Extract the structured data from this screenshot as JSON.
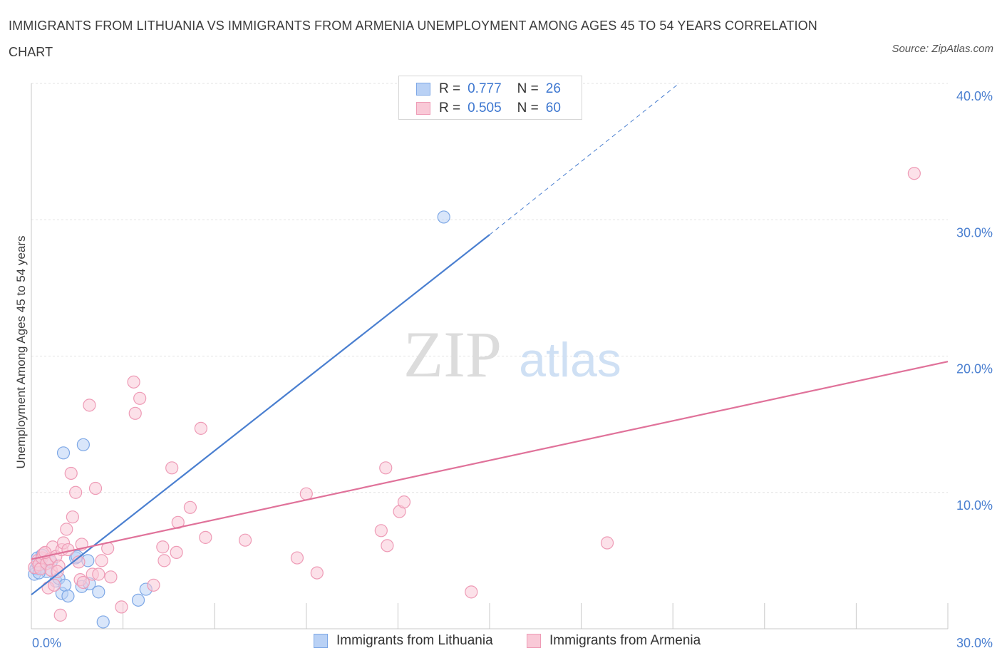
{
  "title": "IMMIGRANTS FROM LITHUANIA VS IMMIGRANTS FROM ARMENIA UNEMPLOYMENT AMONG AGES 45 TO 54 YEARS CORRELATION CHART",
  "source": "Source: ZipAtlas.com",
  "watermark": {
    "zip": "ZIP",
    "atlas": "atlas"
  },
  "stats": [
    {
      "r_label": "R =",
      "r_value": "0.777",
      "n_label": "N =",
      "n_value": "26",
      "color": "#4a7fd0"
    },
    {
      "r_label": "R =",
      "r_value": "0.505",
      "n_label": "N =",
      "n_value": "60",
      "color": "#e0729a"
    }
  ],
  "legend": [
    {
      "label": "Immigrants from Lithuania",
      "fill": "#b9d1f5",
      "stroke": "#7ea8e6"
    },
    {
      "label": "Immigrants from Armenia",
      "fill": "#f9c9d7",
      "stroke": "#ee9bb6"
    }
  ],
  "chart_data": {
    "type": "scatter",
    "title": "IMMIGRANTS FROM LITHUANIA VS IMMIGRANTS FROM ARMENIA UNEMPLOYMENT AMONG AGES 45 TO 54 YEARS CORRELATION CHART",
    "xlabel": "",
    "ylabel": "Unemployment Among Ages 45 to 54 years",
    "xlim": [
      0,
      30
    ],
    "ylim": [
      0,
      40
    ],
    "x_tick_labels": [
      {
        "value": 0,
        "label": "0.0%"
      },
      {
        "value": 30,
        "label": "30.0%"
      }
    ],
    "y_tick_labels": [
      {
        "value": 10,
        "label": "10.0%"
      },
      {
        "value": 20,
        "label": "20.0%"
      },
      {
        "value": 30,
        "label": "30.0%"
      },
      {
        "value": 40,
        "label": "40.0%"
      }
    ],
    "x_minor_ticks": [
      3,
      6,
      9,
      12,
      15,
      18,
      21,
      24,
      27
    ],
    "y_gridlines": [
      10,
      20,
      30,
      40
    ],
    "series": [
      {
        "name": "Immigrants from Lithuania",
        "color": "#4a7fd0",
        "fill": "#b9d1f5",
        "stroke": "#7ea8e6",
        "r": 0.777,
        "n": 26,
        "points": [
          [
            0.1,
            4.0
          ],
          [
            0.15,
            4.4
          ],
          [
            0.2,
            4.8
          ],
          [
            0.2,
            5.2
          ],
          [
            0.3,
            4.5
          ],
          [
            0.35,
            5.4
          ],
          [
            0.5,
            4.2
          ],
          [
            0.65,
            4.9
          ],
          [
            0.8,
            3.5
          ],
          [
            0.9,
            3.7
          ],
          [
            1.0,
            2.6
          ],
          [
            1.1,
            3.2
          ],
          [
            1.2,
            2.4
          ],
          [
            1.05,
            12.9
          ],
          [
            1.45,
            5.2
          ],
          [
            1.5,
            5.3
          ],
          [
            1.65,
            3.1
          ],
          [
            1.7,
            13.5
          ],
          [
            1.85,
            5.0
          ],
          [
            1.9,
            3.3
          ],
          [
            2.2,
            2.7
          ],
          [
            2.35,
            0.5
          ],
          [
            3.75,
            2.9
          ],
          [
            3.5,
            2.1
          ],
          [
            13.5,
            30.2
          ],
          [
            0.25,
            4.1
          ]
        ],
        "trend": {
          "x0": 0,
          "y0": 2.5,
          "x1": 15,
          "y1": 28.9,
          "dash_x1": 21.2,
          "dash_y1": 40
        }
      },
      {
        "name": "Immigrants from Armenia",
        "color": "#e0729a",
        "fill": "#f9c9d7",
        "stroke": "#ee9bb6",
        "r": 0.505,
        "n": 60,
        "points": [
          [
            0.1,
            4.5
          ],
          [
            0.2,
            5.0
          ],
          [
            0.25,
            4.7
          ],
          [
            0.3,
            4.4
          ],
          [
            0.35,
            5.2
          ],
          [
            0.4,
            5.5
          ],
          [
            0.5,
            4.8
          ],
          [
            0.55,
            3.0
          ],
          [
            0.6,
            5.1
          ],
          [
            0.65,
            4.3
          ],
          [
            0.7,
            6.0
          ],
          [
            0.75,
            3.2
          ],
          [
            0.8,
            5.3
          ],
          [
            0.9,
            4.6
          ],
          [
            0.95,
            1.0
          ],
          [
            1.0,
            5.8
          ],
          [
            1.05,
            6.3
          ],
          [
            1.15,
            7.3
          ],
          [
            1.2,
            5.8
          ],
          [
            1.3,
            11.4
          ],
          [
            1.35,
            8.2
          ],
          [
            1.45,
            10.0
          ],
          [
            1.6,
            3.6
          ],
          [
            1.65,
            6.2
          ],
          [
            1.7,
            3.4
          ],
          [
            1.9,
            16.4
          ],
          [
            2.0,
            4.0
          ],
          [
            2.1,
            10.3
          ],
          [
            2.2,
            4.0
          ],
          [
            2.3,
            5.0
          ],
          [
            2.5,
            5.9
          ],
          [
            2.6,
            3.8
          ],
          [
            2.95,
            1.6
          ],
          [
            3.35,
            18.1
          ],
          [
            3.4,
            15.8
          ],
          [
            3.55,
            16.9
          ],
          [
            4.0,
            3.2
          ],
          [
            4.3,
            6.0
          ],
          [
            4.35,
            5.0
          ],
          [
            4.6,
            11.8
          ],
          [
            4.75,
            5.6
          ],
          [
            4.8,
            7.8
          ],
          [
            5.2,
            8.9
          ],
          [
            5.55,
            14.7
          ],
          [
            5.7,
            6.7
          ],
          [
            7.0,
            6.5
          ],
          [
            8.7,
            5.2
          ],
          [
            9.35,
            4.1
          ],
          [
            9.0,
            9.9
          ],
          [
            11.45,
            7.2
          ],
          [
            11.6,
            11.8
          ],
          [
            11.65,
            6.1
          ],
          [
            12.05,
            8.6
          ],
          [
            12.2,
            9.3
          ],
          [
            14.4,
            2.7
          ],
          [
            18.85,
            6.3
          ],
          [
            28.9,
            33.4
          ],
          [
            0.45,
            5.6
          ],
          [
            0.85,
            4.2
          ],
          [
            1.55,
            4.9
          ]
        ],
        "trend": {
          "x0": 0,
          "y0": 5.1,
          "x1": 30,
          "y1": 19.6
        }
      }
    ]
  }
}
